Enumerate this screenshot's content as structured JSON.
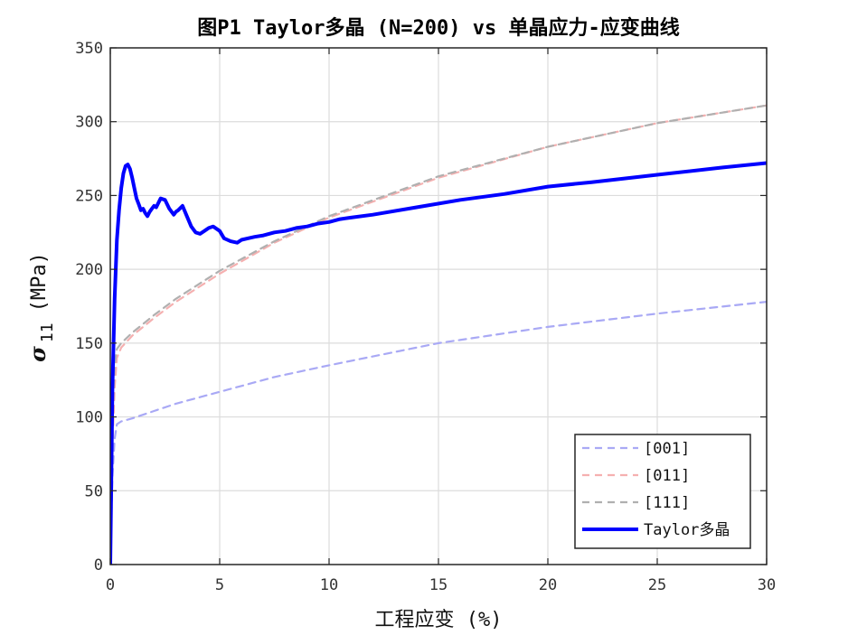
{
  "chart_data": {
    "type": "line",
    "title": "图P1  Taylor多晶 (N=200) vs 单晶应力-应变曲线",
    "xlabel": "工程应变 (%)",
    "ylabel_symbol": "σ",
    "ylabel_subscript": "11",
    "ylabel_unit": "(MPa)",
    "xlim": [
      0,
      30
    ],
    "ylim": [
      0,
      350
    ],
    "xticks": [
      0,
      5,
      10,
      15,
      20,
      25,
      30
    ],
    "yticks": [
      0,
      50,
      100,
      150,
      200,
      250,
      300,
      350
    ],
    "grid": true,
    "legend_position": "bottom-right",
    "series": [
      {
        "name": "[001]",
        "color": "#a9a9f5",
        "style": "dashed",
        "x": [
          0,
          0.1,
          0.2,
          0.3,
          0.5,
          1,
          2,
          3,
          5,
          7.5,
          10,
          15,
          20,
          25,
          30
        ],
        "y": [
          0,
          60,
          85,
          95,
          97,
          99,
          104,
          109,
          117,
          127,
          135,
          150,
          161,
          170,
          178
        ]
      },
      {
        "name": "[011]",
        "color": "#f5b0b0",
        "style": "dashed",
        "x": [
          0,
          0.1,
          0.2,
          0.3,
          0.5,
          1,
          2,
          3,
          5,
          7.5,
          10,
          15,
          20,
          25,
          30
        ],
        "y": [
          0,
          80,
          120,
          140,
          147,
          155,
          167,
          178,
          197,
          218,
          235,
          262,
          283,
          299,
          311
        ]
      },
      {
        "name": "[111]",
        "color": "#b0b0b0",
        "style": "dashed",
        "x": [
          0,
          0.1,
          0.2,
          0.3,
          0.5,
          1,
          2,
          3,
          5,
          7.5,
          10,
          15,
          20,
          25,
          30
        ],
        "y": [
          0,
          100,
          135,
          146,
          150,
          157,
          169,
          180,
          199,
          219,
          236,
          263,
          283,
          299,
          311
        ]
      },
      {
        "name": "Taylor多晶",
        "color": "#0000ff",
        "style": "solid",
        "x": [
          0,
          0.05,
          0.1,
          0.2,
          0.3,
          0.4,
          0.5,
          0.6,
          0.7,
          0.8,
          0.9,
          1.0,
          1.1,
          1.2,
          1.3,
          1.4,
          1.5,
          1.6,
          1.7,
          1.8,
          1.9,
          2.0,
          2.1,
          2.2,
          2.3,
          2.5,
          2.7,
          2.9,
          3.0,
          3.1,
          3.3,
          3.5,
          3.7,
          3.9,
          4.1,
          4.3,
          4.5,
          4.7,
          5.0,
          5.2,
          5.5,
          5.8,
          6.0,
          6.3,
          6.6,
          7.0,
          7.5,
          8.0,
          8.5,
          9.0,
          9.5,
          10.0,
          10.5,
          11,
          12,
          14,
          16,
          18,
          20,
          22,
          25,
          28,
          30
        ],
        "y": [
          0,
          60,
          120,
          180,
          220,
          240,
          255,
          265,
          270,
          271,
          268,
          262,
          255,
          248,
          244,
          240,
          241,
          238,
          236,
          239,
          241,
          243,
          242,
          245,
          248,
          247,
          241,
          237,
          239,
          240,
          243,
          236,
          229,
          225,
          224,
          226,
          228,
          229,
          226,
          221,
          219,
          218,
          220,
          221,
          222,
          223,
          225,
          226,
          228,
          229,
          231,
          232,
          234,
          235,
          237,
          242,
          247,
          251,
          256,
          259,
          264,
          269,
          272
        ]
      }
    ]
  }
}
